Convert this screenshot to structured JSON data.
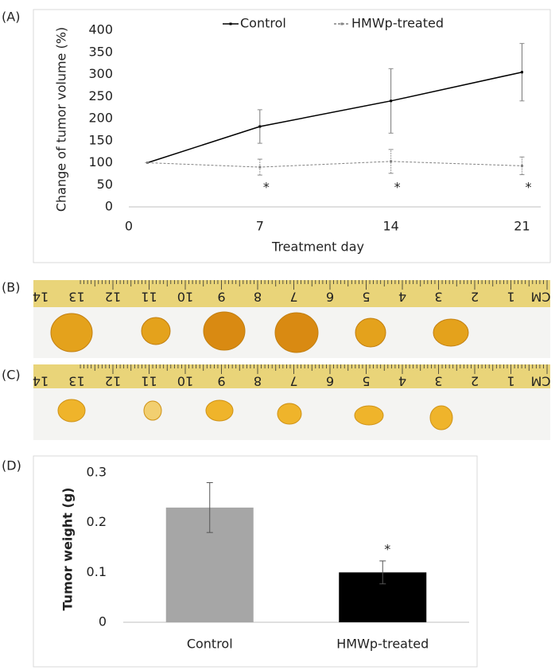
{
  "panel_labels": [
    "(A)",
    "(B)",
    "(C)",
    "(D)"
  ],
  "ruler_labels": [
    "CM",
    "1",
    "2",
    "3",
    "4",
    "5",
    "6",
    "7",
    "8",
    "9",
    "10",
    "11",
    "12",
    "13",
    "14"
  ],
  "chart_data": [
    {
      "type": "line",
      "x_label": "Treatment day",
      "y_label": "Change of tumor volume (%)",
      "x": [
        1,
        7,
        14,
        21
      ],
      "series": [
        {
          "name": "Control",
          "color": "#000000",
          "values": [
            100,
            182,
            240,
            305
          ],
          "errors": [
            0,
            38,
            73,
            65
          ]
        },
        {
          "name": "HMWp-treated",
          "color": "#808080",
          "values": [
            100,
            90,
            103,
            93
          ],
          "errors": [
            0,
            18,
            27,
            20
          ]
        }
      ],
      "annotations": [
        {
          "text": "*",
          "x": 7
        },
        {
          "text": "*",
          "x": 14
        },
        {
          "text": "*",
          "x": 21
        }
      ],
      "xlim": [
        0,
        22
      ],
      "xticks": [
        0,
        7,
        14,
        21
      ],
      "ylim": [
        0,
        400
      ],
      "yticks": [
        0,
        50,
        100,
        150,
        200,
        250,
        300,
        350,
        400
      ],
      "legend": "top"
    },
    {
      "type": "bar",
      "y_label": "Tumor weight (g)",
      "categories": [
        "Control",
        "HMWp-treated"
      ],
      "values": [
        0.23,
        0.1
      ],
      "errors": [
        0.05,
        0.023
      ],
      "colors": [
        "#a6a6a6",
        "#000000"
      ],
      "annotations": [
        {
          "text": "*",
          "category": 1
        }
      ],
      "ylim": [
        0,
        0.3
      ],
      "yticks": [
        0,
        0.1,
        0.2,
        0.3
      ]
    }
  ]
}
